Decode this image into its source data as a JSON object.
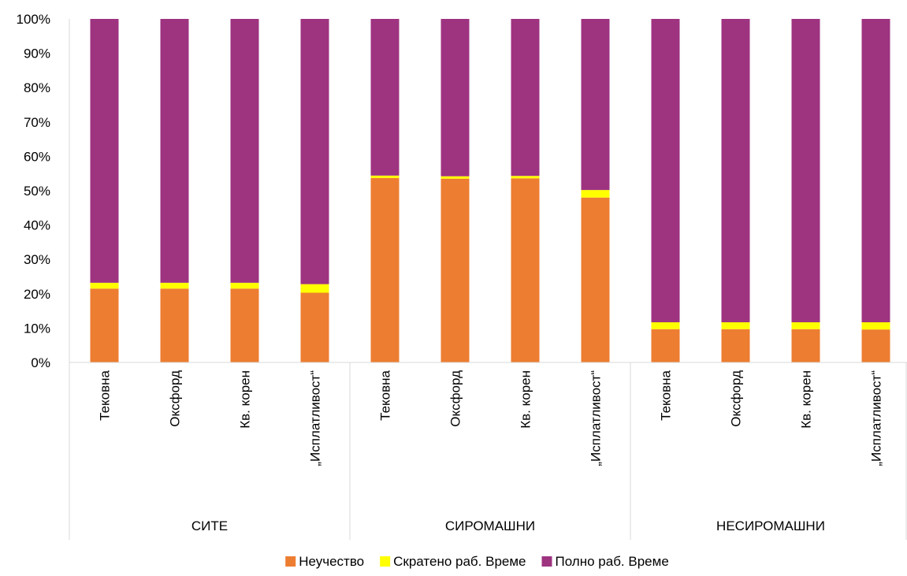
{
  "chart_data": {
    "type": "bar",
    "stacked": true,
    "percent": true,
    "groups": [
      {
        "label": "СИТЕ",
        "categories": [
          "Тековна",
          "Оксфорд",
          "Кв. корен",
          "„Исплатливост“"
        ]
      },
      {
        "label": "СИРОМАШНИ",
        "categories": [
          "Тековна",
          "Оксфорд",
          "Кв. корен",
          "„Исплатливост“"
        ]
      },
      {
        "label": "НЕСИРОМАШНИ",
        "categories": [
          "Тековна",
          "Оксфорд",
          "Кв. корен",
          "„Исплатливост“"
        ]
      }
    ],
    "series": [
      {
        "name": "Неучество",
        "color": "#ED7D31",
        "values": [
          21.5,
          21.5,
          21.5,
          20.3,
          53.7,
          53.5,
          53.6,
          48.0,
          9.7,
          9.7,
          9.7,
          9.6
        ]
      },
      {
        "name": "Скратено раб. Време",
        "color": "#FFFF00",
        "values": [
          1.7,
          1.7,
          1.7,
          2.5,
          0.7,
          0.7,
          0.7,
          2.2,
          2.0,
          2.0,
          2.0,
          2.1
        ]
      },
      {
        "name": "Полно раб. Време",
        "color": "#9E3380",
        "values": [
          76.8,
          76.8,
          76.8,
          77.2,
          45.6,
          45.8,
          45.7,
          49.8,
          88.3,
          88.3,
          88.3,
          88.3
        ]
      }
    ],
    "y_ticks": [
      "0%",
      "10%",
      "20%",
      "30%",
      "40%",
      "50%",
      "60%",
      "70%",
      "80%",
      "90%",
      "100%"
    ],
    "ylim": [
      0,
      100
    ],
    "grid": false,
    "legend_position": "bottom"
  }
}
